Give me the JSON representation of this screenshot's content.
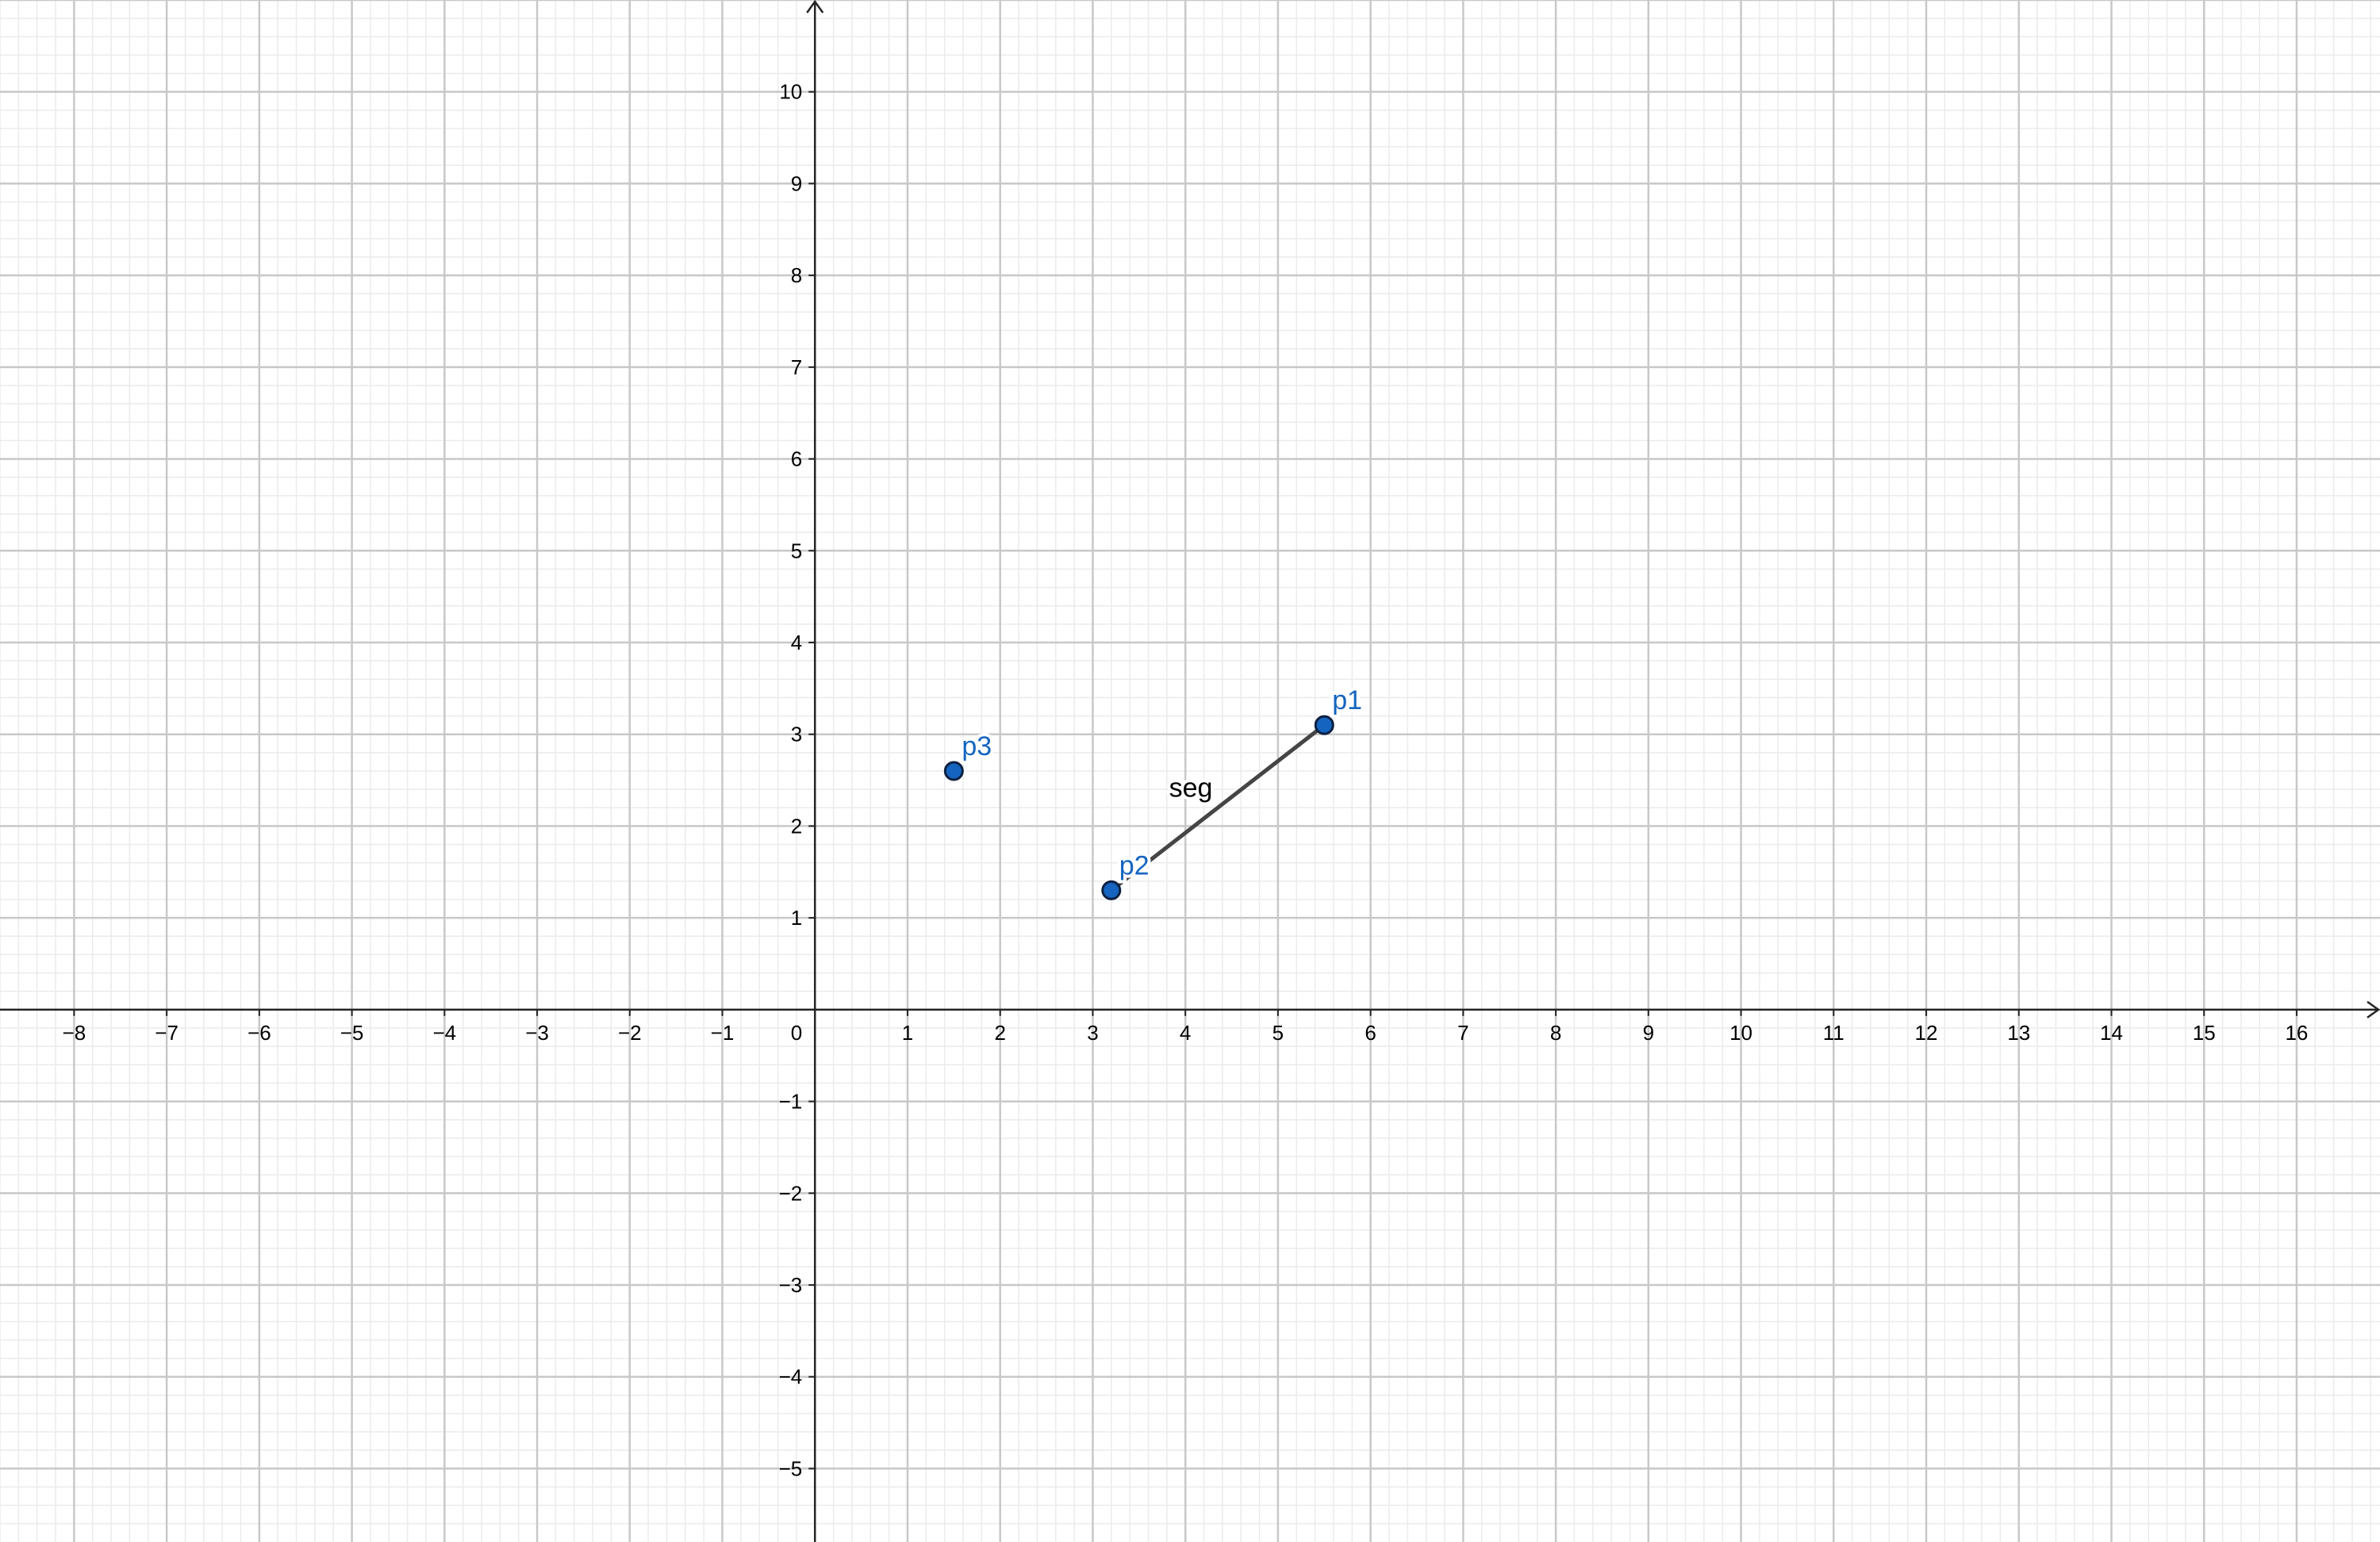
{
  "graphics": {
    "x_axis": {
      "min": -8.8,
      "max": 16.9,
      "ticks": [
        "−8",
        "−7",
        "−6",
        "−5",
        "−4",
        "−3",
        "−2",
        "−1",
        "1",
        "2",
        "3",
        "4",
        "5",
        "6",
        "7",
        "8",
        "9",
        "10",
        "11",
        "12",
        "13",
        "14",
        "15",
        "16"
      ],
      "tick_values": [
        -8,
        -7,
        -6,
        -5,
        -4,
        -3,
        -2,
        -1,
        1,
        2,
        3,
        4,
        5,
        6,
        7,
        8,
        9,
        10,
        11,
        12,
        13,
        14,
        15,
        16
      ]
    },
    "y_axis": {
      "min": -5.8,
      "max": 11.0,
      "ticks": [
        "−5",
        "−4",
        "−3",
        "−2",
        "−1",
        "1",
        "2",
        "3",
        "4",
        "5",
        "6",
        "7",
        "8",
        "9",
        "10"
      ],
      "tick_values": [
        -5,
        -4,
        -3,
        -2,
        -1,
        1,
        2,
        3,
        4,
        5,
        6,
        7,
        8,
        9,
        10
      ]
    },
    "origin_label": "0",
    "grid": {
      "major_step": 1,
      "minor_subdivisions": 5
    },
    "colors": {
      "background": "#ffffff",
      "grid_major": "#c8c8c8",
      "grid_minor": "#ebebeb",
      "axis": "#252525",
      "point_fill": "#1565c0",
      "point_stroke": "#0b2040",
      "point_label": "#1565c0",
      "segment": "#454545",
      "segment_label": "#000000"
    },
    "points": [
      {
        "label": "p1",
        "x": 5.5,
        "y": 3.1
      },
      {
        "label": "p2",
        "x": 3.2,
        "y": 1.3
      },
      {
        "label": "p3",
        "x": 1.5,
        "y": 2.6
      }
    ],
    "segments": [
      {
        "label": "seg",
        "from": "p1",
        "to": "p2"
      }
    ]
  }
}
